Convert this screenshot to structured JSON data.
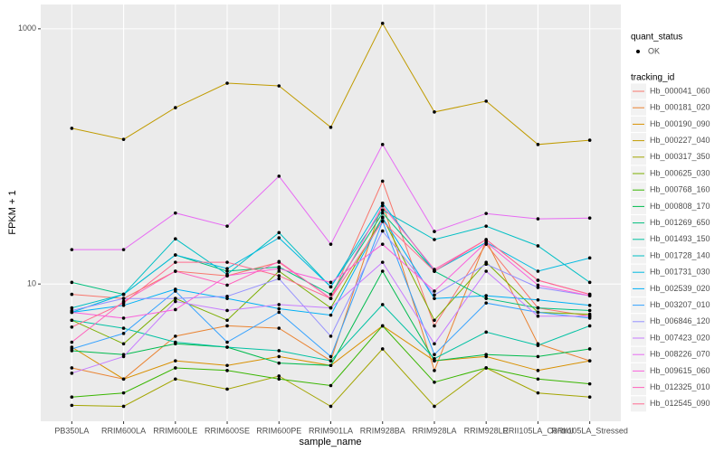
{
  "chart_data": {
    "type": "line",
    "x_label": "sample_name",
    "y_label": "FPKM + 1",
    "log_y": true,
    "grid": true,
    "categories": [
      "PB350LA",
      "RRIM600LA",
      "RRIM600LE",
      "RRIM600SE",
      "RRIM600PE",
      "RRIM901LA",
      "RRIM928BA",
      "RRIM928LA",
      "RRIM928LE",
      "RRII105LA_Control",
      "RRII105LA_Stressed"
    ],
    "ylim": [
      0.84,
      1550
    ],
    "yticks": [
      10,
      1000
    ],
    "shape_legend_title": "quant_status",
    "shape_legend_label": "OK",
    "legend_title": "tracking_id",
    "series": [
      {
        "name": "Hb_000041_060",
        "color": "#F8766D",
        "values": [
          8.3,
          7.7,
          12.6,
          11.6,
          14.8,
          7.7,
          64,
          4.7,
          20.5,
          6.5,
          5.6
        ]
      },
      {
        "name": "Hb_000181_020",
        "color": "#EA8331",
        "values": [
          2.2,
          1.8,
          3.9,
          4.7,
          4.5,
          2.5,
          43,
          2.1,
          22,
          3.4,
          2.5
        ]
      },
      {
        "name": "Hb_000190_090",
        "color": "#D89000",
        "values": [
          3.2,
          1.8,
          2.5,
          2.3,
          2.7,
          2.3,
          4.7,
          2.5,
          2.7,
          2.1,
          2.5
        ]
      },
      {
        "name": "Hb_000227_040",
        "color": "#C09B00",
        "values": [
          166,
          136,
          241,
          375,
          357,
          169,
          1103,
          223,
          271,
          124,
          134
        ]
      },
      {
        "name": "Hb_000317_350",
        "color": "#A3A500",
        "values": [
          1.12,
          1.1,
          1.8,
          1.5,
          1.9,
          1.1,
          3.1,
          1.1,
          2.2,
          1.4,
          1.3
        ]
      },
      {
        "name": "Hb_000625_030",
        "color": "#7CAE00",
        "values": [
          5.2,
          3.4,
          7.7,
          5.2,
          12.6,
          6.5,
          33.4,
          5.2,
          14.8,
          6,
          5.8
        ]
      },
      {
        "name": "Hb_000768_160",
        "color": "#39B600",
        "values": [
          1.3,
          1.4,
          2.2,
          2.1,
          1.8,
          1.6,
          4.7,
          1.7,
          2.2,
          1.8,
          1.65
        ]
      },
      {
        "name": "Hb_000808_170",
        "color": "#00BB4E",
        "values": [
          3,
          2.8,
          3.4,
          3.2,
          2.4,
          2.3,
          12.6,
          2.5,
          2.8,
          2.7,
          3.1
        ]
      },
      {
        "name": "Hb_001269_650",
        "color": "#00BF7D",
        "values": [
          10.3,
          8.3,
          16.9,
          12.6,
          13.6,
          8.3,
          36,
          12.6,
          7.7,
          6.5,
          6.2
        ]
      },
      {
        "name": "Hb_001493_150",
        "color": "#00C1A3",
        "values": [
          5.2,
          4.5,
          3.5,
          3.2,
          3,
          2.5,
          6.9,
          2.6,
          4.2,
          3.3,
          4.7
        ]
      },
      {
        "name": "Hb_001728_140",
        "color": "#00BFC4",
        "values": [
          6.5,
          8.3,
          22.6,
          11.9,
          25.3,
          9.5,
          38,
          22.3,
          28.4,
          19.9,
          10.3
        ]
      },
      {
        "name": "Hb_001731_030",
        "color": "#00BAE0",
        "values": [
          6,
          8.3,
          16.9,
          13.2,
          23,
          9.5,
          43,
          12.6,
          21.2,
          12.6,
          16
        ]
      },
      {
        "name": "Hb_002539_020",
        "color": "#00B0F6",
        "values": [
          6,
          6.8,
          9.1,
          7.7,
          6.4,
          5.7,
          33,
          7.7,
          8.1,
          7.5,
          6.8
        ]
      },
      {
        "name": "Hb_003207_010",
        "color": "#35A2FF",
        "values": [
          3.1,
          4.1,
          8.8,
          3.5,
          6,
          2.7,
          31,
          2.8,
          7.1,
          6,
          5.4
        ]
      },
      {
        "name": "Hb_006846_120",
        "color": "#9590FF",
        "values": [
          6.2,
          7.7,
          7.7,
          8,
          11,
          3.9,
          26,
          8.2,
          14.3,
          9.4,
          8.1
        ]
      },
      {
        "name": "Hb_007423_020",
        "color": "#C77CFF",
        "values": [
          2,
          2.7,
          7.3,
          6.2,
          6.9,
          6.5,
          14.8,
          3.4,
          12.6,
          5.6,
          5.6
        ]
      },
      {
        "name": "Hb_008226_070",
        "color": "#E76BF3",
        "values": [
          18.6,
          18.6,
          36,
          28.4,
          70,
          20.5,
          124,
          25.8,
          35.7,
          32.4,
          32.9
        ]
      },
      {
        "name": "Hb_009615_060",
        "color": "#FA62DB",
        "values": [
          6,
          5.4,
          6.3,
          11.6,
          13.2,
          10.3,
          20.5,
          8.8,
          21.2,
          9.8,
          8.1
        ]
      },
      {
        "name": "Hb_012325_010",
        "color": "#FF62BC",
        "values": [
          3.5,
          7.3,
          12.6,
          9.8,
          15,
          7.7,
          41,
          13,
          22.3,
          10.7,
          8.3
        ]
      },
      {
        "name": "Hb_012545_090",
        "color": "#FF6C91",
        "values": [
          4.6,
          7.1,
          14.8,
          14.8,
          11.6,
          7.7,
          31,
          12.6,
          22.3,
          10.7,
          8.3
        ]
      }
    ]
  }
}
